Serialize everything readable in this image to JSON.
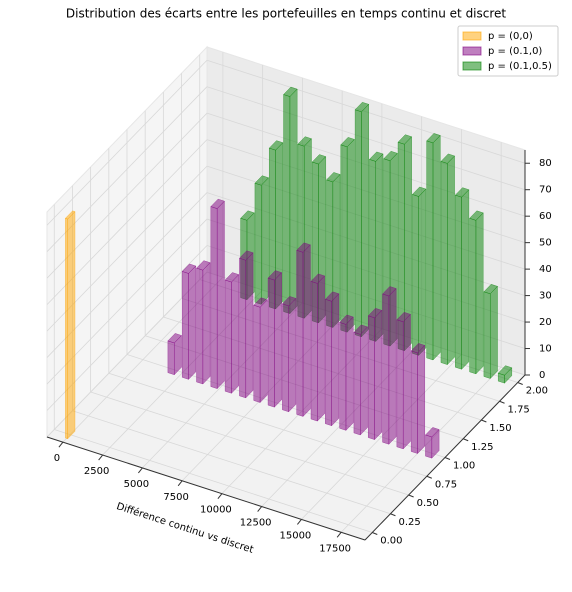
{
  "chart_data": {
    "type": "bar3d",
    "title": "Distribution des écarts entre les portefeuilles en temps continu et discret",
    "xlabel": "Différence continu vs discret",
    "legend": "upper right",
    "grid": true,
    "xlim": [
      -1000,
      19000
    ],
    "ylim": [
      -0.1,
      2.1
    ],
    "zlim": [
      0,
      85
    ],
    "xticks": [
      0,
      2500,
      5000,
      7500,
      10000,
      12500,
      15000,
      17500
    ],
    "yticks": [
      {
        "value": 0,
        "label": "0.00"
      },
      {
        "value": 0.25,
        "label": "0.25"
      },
      {
        "value": 0.5,
        "label": "0.50"
      },
      {
        "value": 0.75,
        "label": "0.75"
      },
      {
        "value": 1,
        "label": "1.00"
      },
      {
        "value": 1.25,
        "label": "1.25"
      },
      {
        "value": 1.5,
        "label": "1.50"
      },
      {
        "value": 1.75,
        "label": "1.75"
      },
      {
        "value": 2,
        "label": "2.00"
      }
    ],
    "zticks": [
      0,
      10,
      20,
      30,
      40,
      50,
      60,
      70,
      80
    ],
    "series": [
      {
        "name": "p = (0,0)",
        "color": "#ffa500",
        "depth": 0,
        "x": [
          0
        ],
        "values": [
          83
        ]
      },
      {
        "name": "p = (0.1,0)",
        "color": "#800080",
        "depth": 1,
        "x": [
          2000,
          2900,
          3800,
          4700,
          5600,
          6500,
          7400,
          8300,
          9200,
          10100,
          11000,
          11900,
          12800,
          13700,
          14600,
          15500,
          16400,
          17300,
          18200
        ],
        "values": [
          12,
          40,
          43,
          68,
          42,
          52,
          36,
          48,
          40,
          62,
          52,
          47,
          40,
          38,
          46,
          56,
          48,
          38,
          8
        ]
      },
      {
        "name": "p = (0.1,0.5)",
        "color": "#008000",
        "depth": 2,
        "x": [
          2000,
          2900,
          3800,
          4700,
          5600,
          6500,
          7400,
          8300,
          9200,
          10100,
          11000,
          11900,
          12800,
          13700,
          14600,
          15500,
          16400,
          17300,
          18200
        ],
        "values": [
          30,
          45,
          60,
          82,
          65,
          60,
          55,
          70,
          85,
          68,
          70,
          78,
          60,
          82,
          76,
          65,
          58,
          32,
          3
        ]
      }
    ]
  }
}
